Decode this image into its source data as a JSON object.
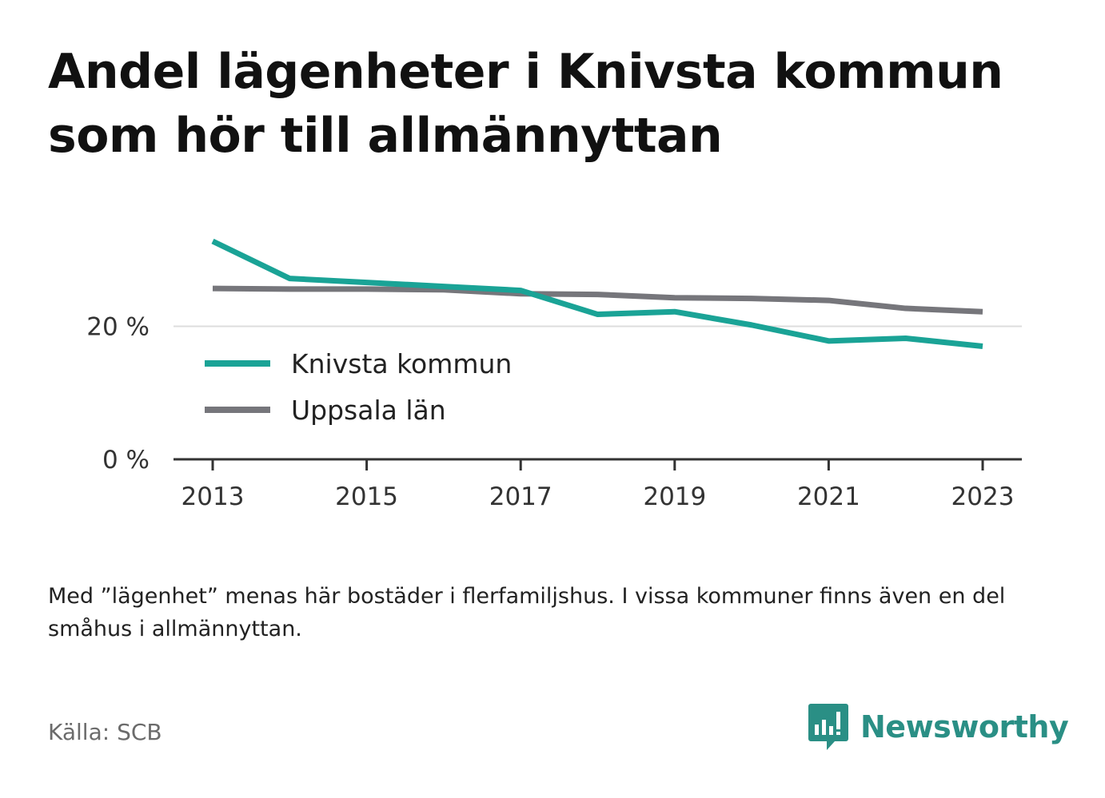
{
  "title": "Andel lägenheter i Knivsta kommun som hör till allmännyttan",
  "note": "Med ”lägenhet” menas här bostäder i flerfamiljshus. I vissa kommuner finns även en del småhus i allmännyttan.",
  "source": "Källa: SCB",
  "brand": {
    "name": "Newsworthy",
    "icon": "newsworthy-logo-icon",
    "color": "#2a8f85"
  },
  "chart_data": {
    "type": "line",
    "x": [
      2013,
      2014,
      2015,
      2016,
      2017,
      2018,
      2019,
      2020,
      2021,
      2022,
      2023
    ],
    "x_tick_labels": [
      "2013",
      "2015",
      "2017",
      "2019",
      "2021",
      "2023"
    ],
    "y_tick_labels": [
      "0 %",
      "20 %"
    ],
    "y_ticks": [
      0,
      20
    ],
    "ylim": [
      0,
      34
    ],
    "grid": true,
    "legend_position": "left-inside",
    "series": [
      {
        "name": "Knivsta kommun",
        "color": "#1aa396",
        "values": [
          32.8,
          27.2,
          26.6,
          26.0,
          25.4,
          21.8,
          22.2,
          20.2,
          17.8,
          18.2,
          17.0
        ]
      },
      {
        "name": "Uppsala län",
        "color": "#76767b",
        "values": [
          25.7,
          25.6,
          25.6,
          25.5,
          24.9,
          24.8,
          24.3,
          24.2,
          23.9,
          22.7,
          22.2
        ]
      }
    ]
  }
}
